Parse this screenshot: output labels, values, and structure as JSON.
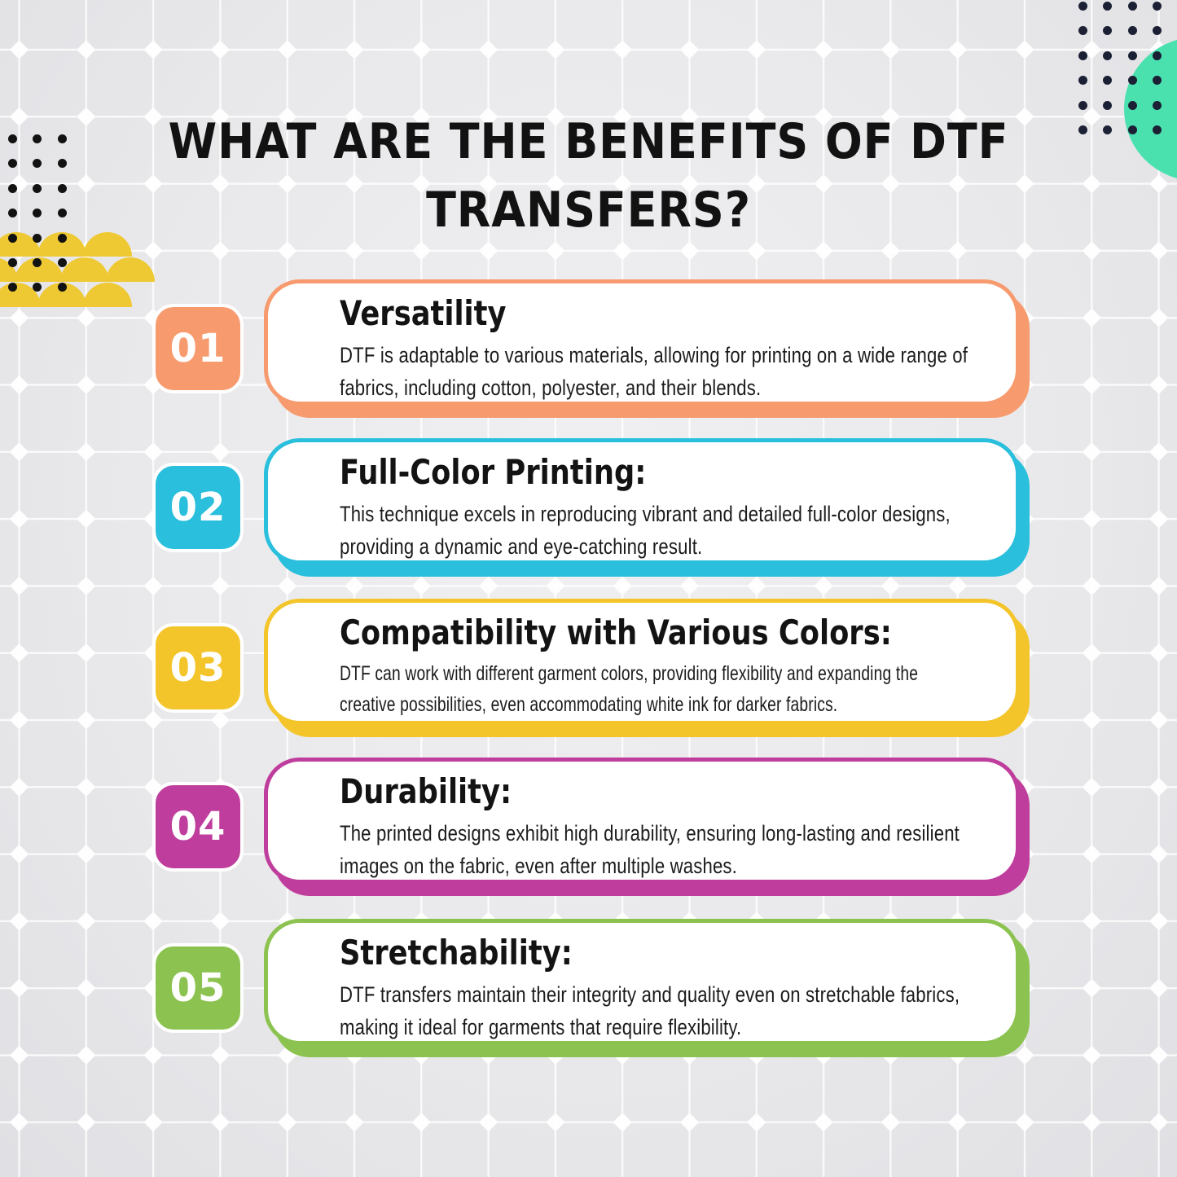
{
  "header": {
    "title_line1": "WHAT ARE THE BENEFITS OF DTF",
    "title_line2": "TRANSFERS?"
  },
  "cards": [
    {
      "number": "01",
      "title": "Versatility",
      "body": "DTF is adaptable to various materials, allowing for printing on a wide range of fabrics, including cotton, polyester, and their blends.",
      "color": "#F79B6F"
    },
    {
      "number": "02",
      "title": "Full-Color Printing:",
      "body": "This technique excels in reproducing vibrant and detailed full-color designs, providing a dynamic and eye-catching result.",
      "color": "#2ABFDC"
    },
    {
      "number": "03",
      "title": "Compatibility with Various Colors:",
      "body": "DTF can work with different garment colors, providing flexibility and expanding the creative possibilities, even accommodating white ink for darker fabrics.",
      "color": "#F3C52B"
    },
    {
      "number": "04",
      "title": "Durability:",
      "body": "The printed designs exhibit high durability, ensuring long-lasting and resilient images on the fabric, even after multiple washes.",
      "color": "#BF3D9C"
    },
    {
      "number": "05",
      "title": "Stretchability:",
      "body": "DTF transfers maintain their integrity and quality even on stretchable fabrics, making it ideal for garments that require flexibility.",
      "color": "#8CC350"
    }
  ],
  "decor": {
    "teal_circle_color": "#4BE1AF",
    "scallop_color": "#EFC933",
    "dot_color_dark": "#1B2035",
    "dot_color_black": "#121212",
    "grid_line_color": "#FFFFFF",
    "background_color": "#E9E9EB",
    "title_color": "#121212",
    "text_color": "#1B1B1B"
  }
}
